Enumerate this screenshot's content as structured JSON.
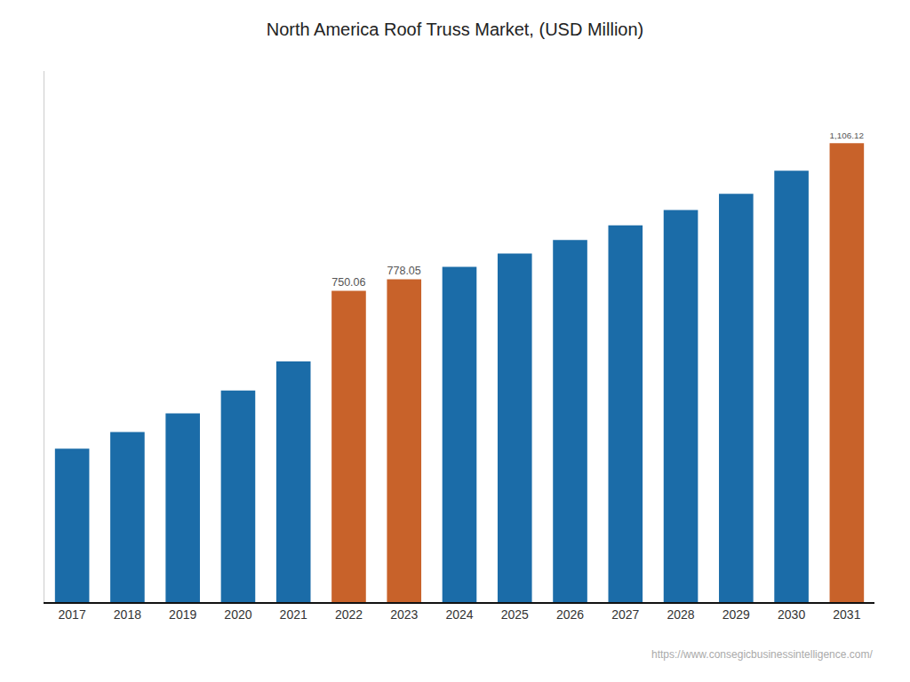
{
  "chart_data": {
    "type": "bar",
    "title": "North America Roof Truss Market, (USD Million)",
    "categories": [
      "2017",
      "2018",
      "2019",
      "2020",
      "2021",
      "2022",
      "2023",
      "2024",
      "2025",
      "2026",
      "2027",
      "2028",
      "2029",
      "2030",
      "2031"
    ],
    "values": [
      370,
      410,
      455,
      510,
      580,
      750.06,
      778.05,
      808,
      840,
      873,
      908,
      945,
      984,
      1040,
      1106.12
    ],
    "colors": [
      "#1b6ca8",
      "#1b6ca8",
      "#1b6ca8",
      "#1b6ca8",
      "#1b6ca8",
      "#c8622a",
      "#c8622a",
      "#1b6ca8",
      "#1b6ca8",
      "#1b6ca8",
      "#1b6ca8",
      "#1b6ca8",
      "#1b6ca8",
      "#1b6ca8",
      "#c8622a"
    ],
    "data_labels": true,
    "value_labels": [
      null,
      null,
      null,
      null,
      null,
      "750.06",
      "778.05",
      null,
      null,
      null,
      null,
      null,
      null,
      null,
      "1,106.12"
    ],
    "ylim": [
      0,
      1280
    ],
    "tick_labels": "x",
    "grid": false,
    "annotations": [
      {
        "text": "https://www.consegicbusinessintelligence.com/"
      }
    ]
  }
}
